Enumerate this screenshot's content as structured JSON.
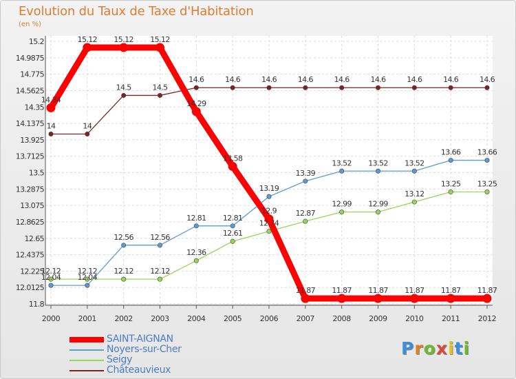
{
  "chart_data": {
    "type": "line",
    "title": "Evolution du Taux de Taxe d'Habitation",
    "subtitle": "(en %)",
    "x": [
      "2000",
      "2001",
      "2002",
      "2003",
      "2004",
      "2005",
      "2006",
      "2007",
      "2008",
      "2009",
      "2010",
      "2011",
      "2012"
    ],
    "ylim": [
      11.8,
      15.2
    ],
    "yticks": [
      "11.8",
      "12.0125",
      "12.225",
      "12.4375",
      "12.65",
      "12.8625",
      "13.075",
      "13.2875",
      "13.5",
      "13.7125",
      "13.925",
      "14.1375",
      "14.35",
      "14.5625",
      "14.775",
      "14.9875",
      "15.2"
    ],
    "series": [
      {
        "name": "SAINT-AIGNAN",
        "color": "#ff0000",
        "values": [
          14.34,
          15.12,
          15.12,
          15.12,
          14.29,
          13.58,
          12.9,
          11.87,
          11.87,
          11.87,
          11.87,
          11.87,
          11.87
        ],
        "labels": [
          "14.34",
          "15.12",
          "15.12",
          "15.12",
          "14.29",
          "13.58",
          "12.9",
          "11.87",
          "11.87",
          "11.87",
          "11.87",
          "11.87",
          "11.87"
        ]
      },
      {
        "name": "Noyers-sur-Cher",
        "color": "#5b9bd5",
        "values": [
          12.04,
          12.04,
          12.56,
          12.56,
          12.81,
          12.81,
          13.19,
          13.39,
          13.52,
          13.52,
          13.52,
          13.66,
          13.66
        ],
        "labels": [
          "12.04",
          "12.04",
          "12.56",
          "12.56",
          "12.81",
          "12.81",
          "13.19",
          "13.39",
          "13.52",
          "13.52",
          "13.52",
          "13.66",
          "13.66"
        ]
      },
      {
        "name": "Seigy",
        "color": "#99d45c",
        "values": [
          12.12,
          12.12,
          12.12,
          12.12,
          12.36,
          12.61,
          12.74,
          12.87,
          12.99,
          12.99,
          13.12,
          13.25,
          13.25
        ],
        "labels": [
          "12.12",
          "12.12",
          "12.12",
          "12.12",
          "12.36",
          "12.61",
          "12.74",
          "12.87",
          "12.99",
          "12.99",
          "13.12",
          "13.25",
          "13.25"
        ]
      },
      {
        "name": "Châteauvieux",
        "color": "#7a2424",
        "values": [
          14,
          14,
          14.5,
          14.5,
          14.6,
          14.6,
          14.6,
          14.6,
          14.6,
          14.6,
          14.6,
          14.6,
          14.6
        ],
        "labels": [
          "14",
          "14",
          "14.5",
          "14.5",
          "14.6",
          "14.6",
          "14.6",
          "14.6",
          "14.6",
          "14.6",
          "14.6",
          "14.6",
          "14.6"
        ]
      }
    ]
  },
  "legend": [
    {
      "label": "SAINT-AIGNAN",
      "color": "#ff0000"
    },
    {
      "label": "Noyers-sur-Cher",
      "color": "#5b9bd5"
    },
    {
      "label": "Seigy",
      "color": "#99d45c"
    },
    {
      "label": "Châteauvieux",
      "color": "#7a2424"
    }
  ],
  "logo": {
    "letters": [
      "P",
      "r",
      "o",
      "x",
      "i",
      "t",
      "i"
    ],
    "colors": [
      "#3a8fd9",
      "#e0801a",
      "#6cb82e",
      "#d94a3a",
      "#e8c01e",
      "#3a8fd9",
      "#6cb82e"
    ]
  }
}
